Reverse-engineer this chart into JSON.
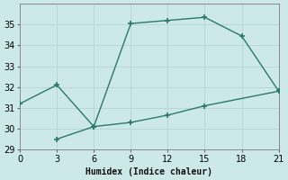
{
  "line1_x": [
    0,
    3,
    6,
    9,
    12,
    15,
    18,
    21
  ],
  "line1_y": [
    31.2,
    32.1,
    30.1,
    35.05,
    35.2,
    35.35,
    34.45,
    31.8
  ],
  "line2_x": [
    3,
    6,
    9,
    12,
    15,
    21
  ],
  "line2_y": [
    29.5,
    30.1,
    30.3,
    30.65,
    31.1,
    31.8
  ],
  "line_color": "#2a7a6a",
  "bg_color": "#cce8e8",
  "grid_major_color": "#b8d8d8",
  "grid_minor_color": "#c8e4e4",
  "xlabel": "Humidex (Indice chaleur)",
  "xlim": [
    0,
    21
  ],
  "ylim": [
    29,
    36
  ],
  "xticks": [
    0,
    3,
    6,
    9,
    12,
    15,
    18,
    21
  ],
  "yticks": [
    29,
    30,
    31,
    32,
    33,
    34,
    35
  ],
  "markersize": 4,
  "linewidth": 1.0,
  "font_size": 7,
  "xlabel_font_size": 7
}
